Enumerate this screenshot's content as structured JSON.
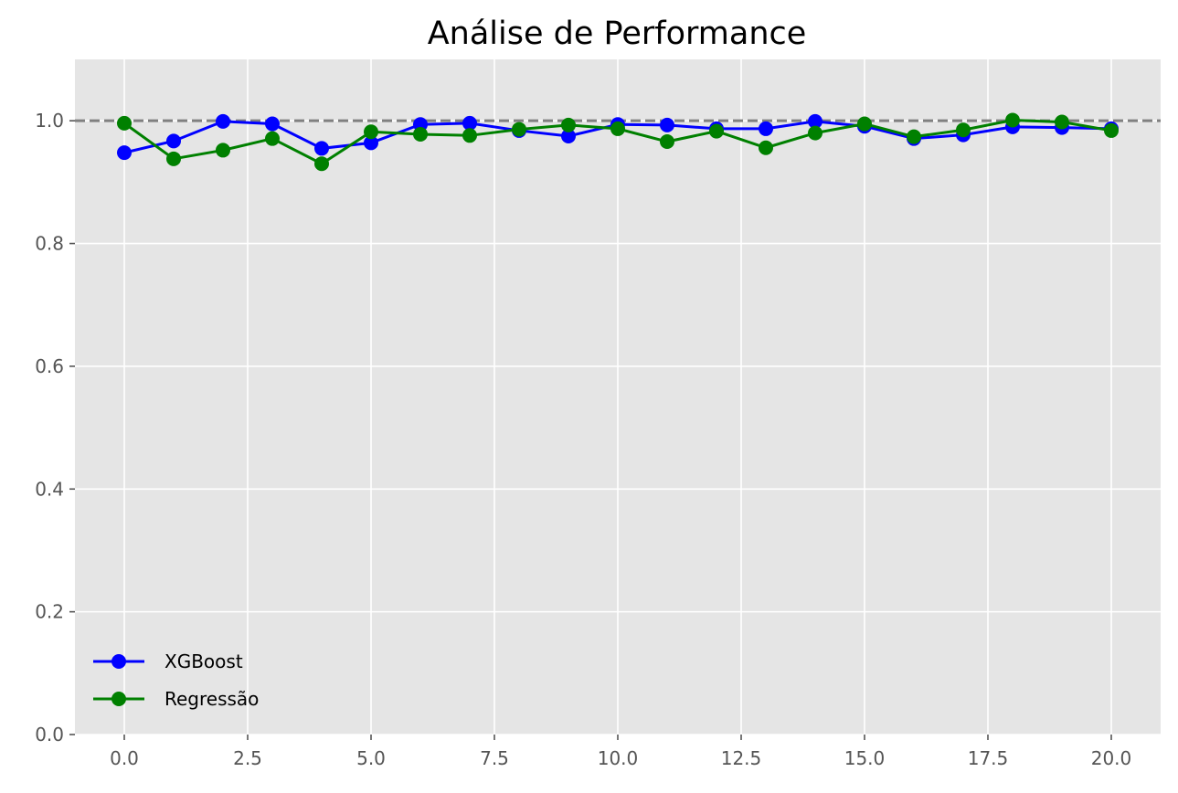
{
  "chart_data": {
    "type": "line",
    "title": "Análise de Performance",
    "xlabel": "",
    "ylabel": "",
    "xlim": [
      -1,
      21
    ],
    "ylim": [
      0.0,
      1.1
    ],
    "xticks": [
      0,
      2.5,
      5,
      7.5,
      10,
      12.5,
      15,
      17.5,
      20
    ],
    "xtick_labels": [
      "0.0",
      "2.5",
      "5.0",
      "7.5",
      "10.0",
      "12.5",
      "15.0",
      "17.5",
      "20.0"
    ],
    "yticks": [
      0,
      0.2,
      0.4,
      0.6,
      0.8,
      1.0
    ],
    "ytick_labels": [
      "0.0",
      "0.2",
      "0.4",
      "0.6",
      "0.8",
      "1.0"
    ],
    "grid": true,
    "legend_position": "lower-left",
    "reference_line": {
      "y": 1.0,
      "style": "dashed",
      "color": "#808080"
    },
    "x": [
      0,
      1,
      2,
      3,
      4,
      5,
      6,
      7,
      8,
      9,
      10,
      11,
      12,
      13,
      14,
      15,
      16,
      17,
      18,
      19,
      20
    ],
    "series": [
      {
        "name": "XGBoost",
        "color": "#0000ff",
        "values": [
          0.948,
          0.967,
          0.999,
          0.995,
          0.955,
          0.964,
          0.994,
          0.996,
          0.984,
          0.975,
          0.994,
          0.993,
          0.987,
          0.987,
          0.999,
          0.991,
          0.971,
          0.977,
          0.99,
          0.989,
          0.987
        ]
      },
      {
        "name": "Regressão",
        "color": "#008000",
        "values": [
          0.996,
          0.938,
          0.952,
          0.971,
          0.93,
          0.982,
          0.978,
          0.976,
          0.986,
          0.993,
          0.987,
          0.966,
          0.983,
          0.956,
          0.98,
          0.995,
          0.974,
          0.985,
          1.001,
          0.998,
          0.984
        ]
      }
    ]
  }
}
